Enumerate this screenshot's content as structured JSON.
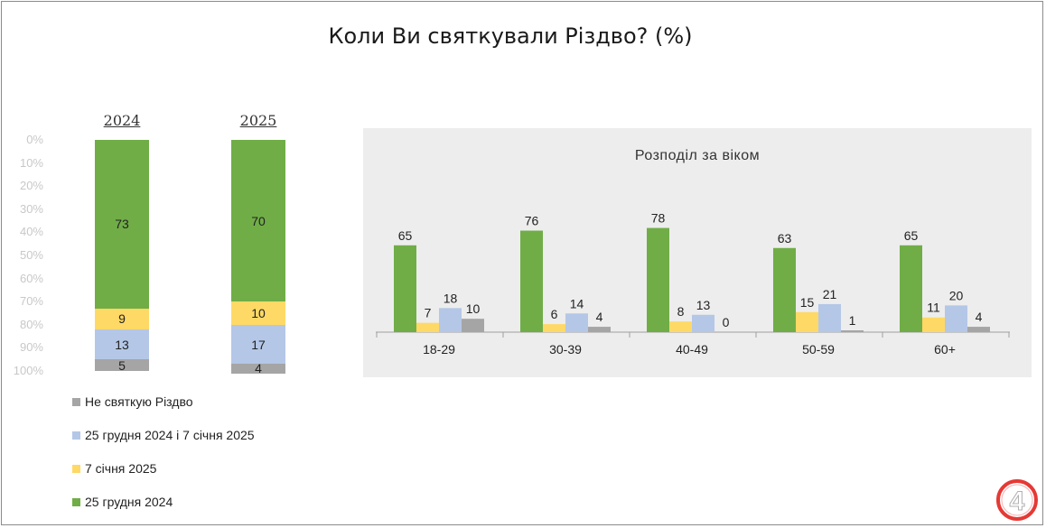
{
  "title": "Коли Ви святкували Різдво? (%)",
  "colors": {
    "dec25": "#70ad47",
    "jan7": "#ffd966",
    "both": "#b4c7e7",
    "none": "#a5a5a5"
  },
  "chart_data": [
    {
      "type": "bar",
      "stacked": true,
      "categories": [
        "2024",
        "2025"
      ],
      "yticks": [
        "0%",
        "10%",
        "20%",
        "30%",
        "40%",
        "50%",
        "60%",
        "70%",
        "80%",
        "90%",
        "100%"
      ],
      "ylim": [
        0,
        100
      ],
      "series": [
        {
          "name": "25 грудня 2024",
          "key": "dec25",
          "values": [
            73,
            70
          ]
        },
        {
          "name": "7 січня 2025",
          "key": "jan7",
          "values": [
            9,
            10
          ]
        },
        {
          "name": "25 грудня 2024 і 7 січня 2025",
          "key": "both",
          "values": [
            13,
            17
          ]
        },
        {
          "name": "Не святкую Різдво",
          "key": "none",
          "values": [
            5,
            4
          ]
        }
      ],
      "legend": [
        {
          "label": "Не святкую Різдво",
          "key": "none"
        },
        {
          "label": "25 грудня 2024 і 7 січня 2025",
          "key": "both"
        },
        {
          "label": "7 січня 2025",
          "key": "jan7"
        },
        {
          "label": "25 грудня 2024",
          "key": "dec25"
        }
      ],
      "legend_position": "bottom"
    },
    {
      "type": "bar",
      "title": "Розподіл за віком",
      "categories": [
        "18-29",
        "30-39",
        "40-49",
        "50-59",
        "60+"
      ],
      "series": [
        {
          "key": "dec25",
          "values": [
            65,
            76,
            78,
            63,
            65
          ]
        },
        {
          "key": "jan7",
          "values": [
            7,
            6,
            8,
            15,
            11
          ]
        },
        {
          "key": "both",
          "values": [
            18,
            14,
            13,
            21,
            20
          ]
        },
        {
          "key": "none",
          "values": [
            10,
            4,
            0,
            1,
            4
          ]
        }
      ]
    }
  ],
  "logo": {
    "text": "4",
    "color": "#e53935"
  }
}
